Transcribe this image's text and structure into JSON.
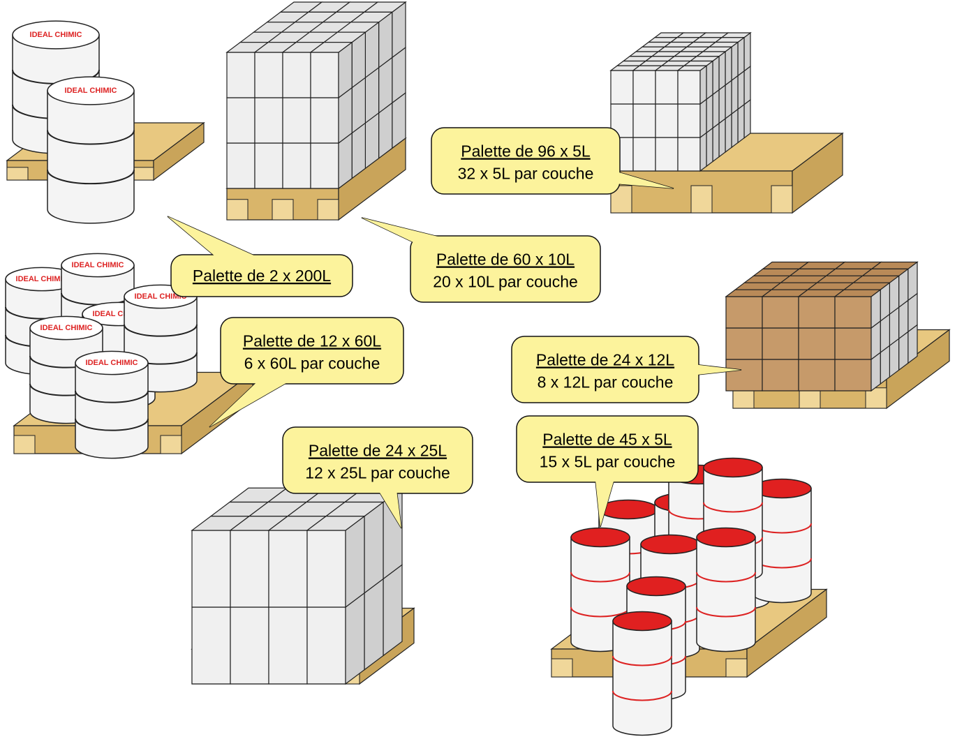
{
  "brand": "IDEAL CHIMIC",
  "callouts": [
    {
      "title": "Palette de 2 x 200L"
    },
    {
      "title": "Palette de 60 x 10L",
      "subtitle": "20 x 10L par couche"
    },
    {
      "title": "Palette de 96 x 5L",
      "subtitle": "32 x 5L par couche"
    },
    {
      "title": "Palette de 12 x 60L",
      "subtitle": "6 x 60L par couche"
    },
    {
      "title": "Palette de 24 x 12L",
      "subtitle": "8 x 12L par couche"
    },
    {
      "title": "Palette de 24 x 25L",
      "subtitle": "12 x 25L par couche"
    },
    {
      "title": "Palette de 45 x 5L",
      "subtitle": "15 x 5L par couche"
    }
  ]
}
